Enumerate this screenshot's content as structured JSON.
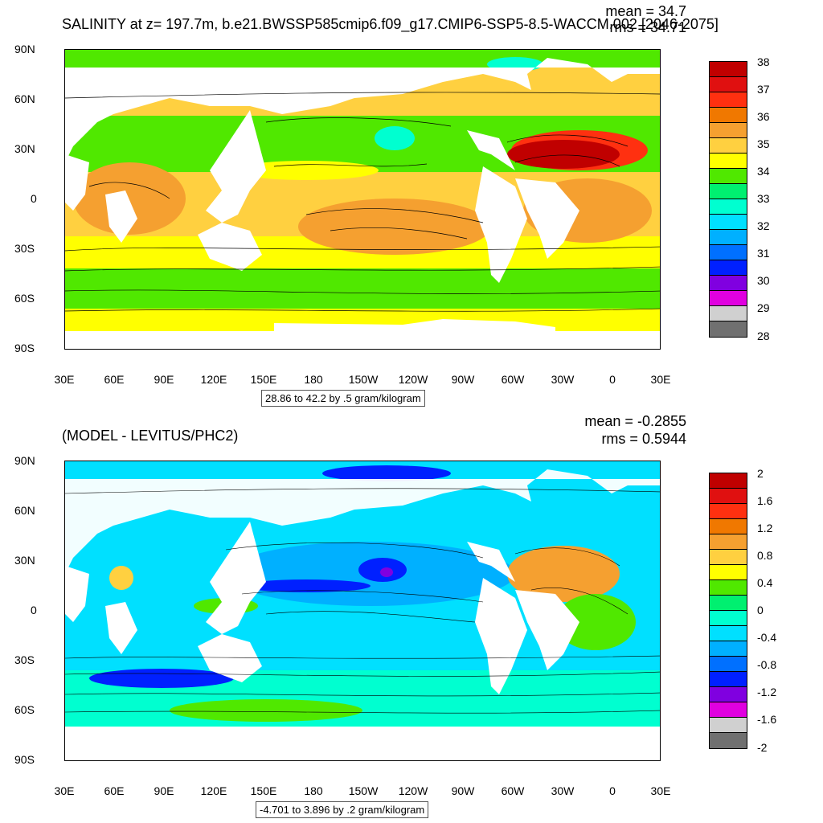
{
  "top": {
    "title": "SALINITY at z= 197.7m, b.e21.BWSSP585cmip6.f09_g17.CMIP6-SSP5-8.5-WACCM.002 [2046-2075]",
    "mean": "mean = 34.7",
    "rms": "rms = 34.71",
    "contour_info": "28.86 to 42.2 by .5 gram/kilogram",
    "colorbar_labels": [
      "38",
      "37",
      "36",
      "35",
      "34",
      "33",
      "32",
      "31",
      "30",
      "29",
      "28"
    ],
    "colors": [
      "#c00000",
      "#e01010",
      "#ff3010",
      "#f07800",
      "#f5a030",
      "#ffd040",
      "#ffff00",
      "#50e800",
      "#00f070",
      "#00ffd0",
      "#00e0ff",
      "#00b0ff",
      "#0070ff",
      "#0020ff",
      "#8000e0",
      "#e000e0",
      "#d0d0d0",
      "#707070"
    ]
  },
  "bottom": {
    "title": "(MODEL - LEVITUS/PHC2)",
    "mean": "mean = -0.2855",
    "rms": "rms = 0.5944",
    "contour_info": "-4.701 to 3.896 by .2 gram/kilogram",
    "colorbar_labels": [
      "2",
      "1.6",
      "1.2",
      "0.8",
      "0.4",
      "0",
      "-0.4",
      "-0.8",
      "-1.2",
      "-1.6",
      "-2"
    ],
    "colors": [
      "#c00000",
      "#e01010",
      "#ff3010",
      "#f07800",
      "#f5a030",
      "#ffd040",
      "#ffff00",
      "#50e800",
      "#00f070",
      "#00ffd0",
      "#00e0ff",
      "#00b0ff",
      "#0070ff",
      "#0020ff",
      "#8000e0",
      "#e000e0",
      "#d0d0d0",
      "#707070"
    ]
  },
  "axes": {
    "lat_labels": [
      "90N",
      "60N",
      "30N",
      "0",
      "30S",
      "60S",
      "90S"
    ],
    "lon_labels": [
      "30E",
      "60E",
      "90E",
      "120E",
      "150E",
      "180",
      "150W",
      "120W",
      "90W",
      "60W",
      "30W",
      "0",
      "30E"
    ]
  }
}
